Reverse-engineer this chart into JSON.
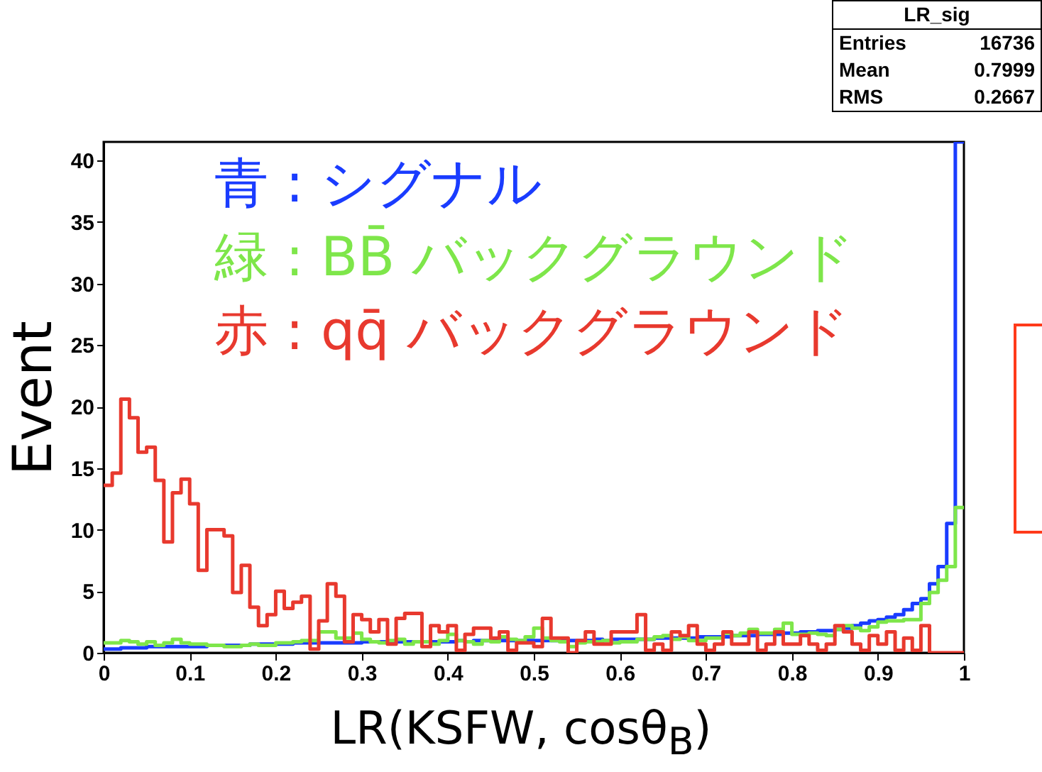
{
  "chart_data": {
    "type": "histogram",
    "xlabel": "LR(KSFW, cosθ$_{B}$)",
    "ylabel": "Event",
    "bins": [
      0,
      0.01,
      0.02,
      0.03,
      0.04,
      0.05,
      0.06,
      0.07,
      0.08,
      0.09,
      0.1,
      0.11,
      0.12,
      0.13,
      0.14,
      0.15,
      0.16,
      0.17,
      0.18,
      0.19,
      0.2,
      0.21,
      0.22,
      0.23,
      0.24,
      0.25,
      0.26,
      0.27,
      0.28,
      0.29,
      0.3,
      0.31,
      0.32,
      0.33,
      0.34,
      0.35,
      0.36,
      0.37,
      0.38,
      0.39,
      0.4,
      0.41,
      0.42,
      0.43,
      0.44,
      0.45,
      0.46,
      0.47,
      0.48,
      0.49,
      0.5,
      0.51,
      0.52,
      0.53,
      0.54,
      0.55,
      0.56,
      0.57,
      0.58,
      0.59,
      0.6,
      0.61,
      0.62,
      0.63,
      0.64,
      0.65,
      0.66,
      0.67,
      0.68,
      0.69,
      0.7,
      0.71,
      0.72,
      0.73,
      0.74,
      0.75,
      0.76,
      0.77,
      0.78,
      0.79,
      0.8,
      0.81,
      0.82,
      0.83,
      0.84,
      0.85,
      0.86,
      0.87,
      0.88,
      0.89,
      0.9,
      0.91,
      0.92,
      0.93,
      0.94,
      0.95,
      0.96,
      0.97,
      0.98,
      0.99,
      1
    ],
    "series": [
      {
        "name": "青 : シグナル",
        "color": "#1a3cff",
        "values": [
          0.3,
          0.3,
          0.4,
          0.4,
          0.4,
          0.5,
          0.5,
          0.5,
          0.5,
          0.5,
          0.5,
          0.5,
          0.6,
          0.6,
          0.6,
          0.6,
          0.6,
          0.7,
          0.7,
          0.7,
          0.7,
          0.7,
          0.8,
          0.8,
          0.8,
          0.8,
          0.8,
          0.8,
          0.8,
          0.8,
          0.9,
          0.9,
          0.9,
          0.9,
          0.9,
          0.9,
          0.9,
          0.9,
          0.9,
          0.9,
          0.9,
          1.0,
          0.9,
          1.0,
          1.0,
          1.0,
          1.0,
          1.0,
          1.0,
          1.0,
          1.0,
          1.0,
          1.0,
          1.0,
          1.0,
          1.0,
          1.0,
          1.1,
          1.0,
          1.1,
          1.1,
          1.1,
          1.1,
          1.1,
          1.2,
          1.2,
          1.2,
          1.2,
          1.2,
          1.3,
          1.3,
          1.3,
          1.3,
          1.4,
          1.4,
          1.4,
          1.5,
          1.5,
          1.5,
          1.6,
          1.6,
          1.7,
          1.7,
          1.8,
          1.8,
          1.9,
          2.0,
          2.2,
          2.4,
          2.6,
          2.7,
          2.9,
          3.1,
          3.5,
          4.0,
          4.4,
          5.6,
          7.0,
          10.5,
          41.5
        ]
      },
      {
        "name": "緑 : BB̄ バックグラウンド",
        "color": "#7ee64a",
        "values": [
          0.8,
          0.8,
          1.0,
          0.9,
          0.7,
          0.9,
          0.6,
          0.8,
          1.1,
          0.8,
          0.7,
          0.7,
          0.6,
          0.6,
          0.5,
          0.5,
          0.6,
          0.7,
          0.6,
          0.6,
          0.8,
          0.8,
          0.9,
          1.0,
          1.0,
          1.7,
          1.7,
          1.2,
          1.2,
          1.6,
          1.1,
          0.9,
          0.8,
          1.0,
          1.1,
          0.7,
          0.9,
          0.9,
          0.7,
          1.0,
          1.5,
          1.0,
          0.9,
          0.7,
          1.0,
          0.9,
          1.3,
          1.1,
          1.0,
          1.3,
          2.0,
          1.2,
          1.0,
          0.9,
          0.5,
          0.8,
          0.9,
          0.9,
          1.0,
          0.8,
          0.9,
          0.9,
          1.1,
          1.1,
          1.3,
          1.4,
          1.1,
          1.3,
          1.0,
          1.0,
          1.2,
          1.2,
          1.6,
          1.4,
          1.6,
          1.9,
          1.6,
          1.6,
          1.9,
          2.4,
          1.5,
          1.5,
          1.6,
          1.5,
          1.4,
          1.9,
          2.2,
          2.0,
          1.8,
          2.1,
          2.5,
          2.6,
          2.6,
          2.7,
          2.7,
          4.0,
          4.9,
          5.9,
          7.0,
          11.8
        ]
      },
      {
        "name": "赤 : qq̄ バックグラウンド",
        "color": "#e8392e",
        "values": [
          13.6,
          14.6,
          20.6,
          19.1,
          16.3,
          16.7,
          14.0,
          9.0,
          13.0,
          14.1,
          12.1,
          6.7,
          10.0,
          10.0,
          9.5,
          4.9,
          7.1,
          3.7,
          2.2,
          3.1,
          5.0,
          3.6,
          4.1,
          4.6,
          0.3,
          2.6,
          5.6,
          4.6,
          0.9,
          3.1,
          2.7,
          1.7,
          2.7,
          0.7,
          2.8,
          3.2,
          3.2,
          0.5,
          2.2,
          1.7,
          2.2,
          0.2,
          1.5,
          2.0,
          2.0,
          1.2,
          1.7,
          0.2,
          0.8,
          0.8,
          0.5,
          2.8,
          1.2,
          1.2,
          0,
          1.0,
          1.7,
          0.7,
          0.7,
          1.7,
          1.7,
          1.7,
          3.1,
          0.2,
          0.7,
          0.2,
          1.7,
          1.4,
          2.2,
          0.7,
          0.2,
          0.7,
          1.7,
          0.7,
          0.7,
          1.7,
          0.2,
          0.7,
          1.7,
          0.7,
          0.7,
          1.4,
          0.7,
          0.2,
          0.7,
          2.2,
          1.7,
          0.7,
          0.2,
          1.4,
          0.7,
          1.7,
          0.2,
          1.2,
          0.2,
          2.2,
          0,
          0,
          0,
          0
        ]
      }
    ],
    "xlim": [
      0,
      1
    ],
    "ylim": [
      0,
      41.5
    ],
    "xticks": [
      {
        "value": 0,
        "label": "0"
      },
      0.1,
      0.2,
      0.3,
      0.4,
      0.5,
      0.6,
      0.7,
      0.8,
      0.9,
      {
        "value": 1,
        "label": "1"
      }
    ],
    "yticks": [
      0,
      5,
      10,
      15,
      20,
      25,
      30,
      35,
      40
    ],
    "legend": "top left",
    "annotations": [
      "LR_sig",
      "Entries 16736",
      "Mean 0.7999",
      "RMS 0.2667"
    ]
  }
}
